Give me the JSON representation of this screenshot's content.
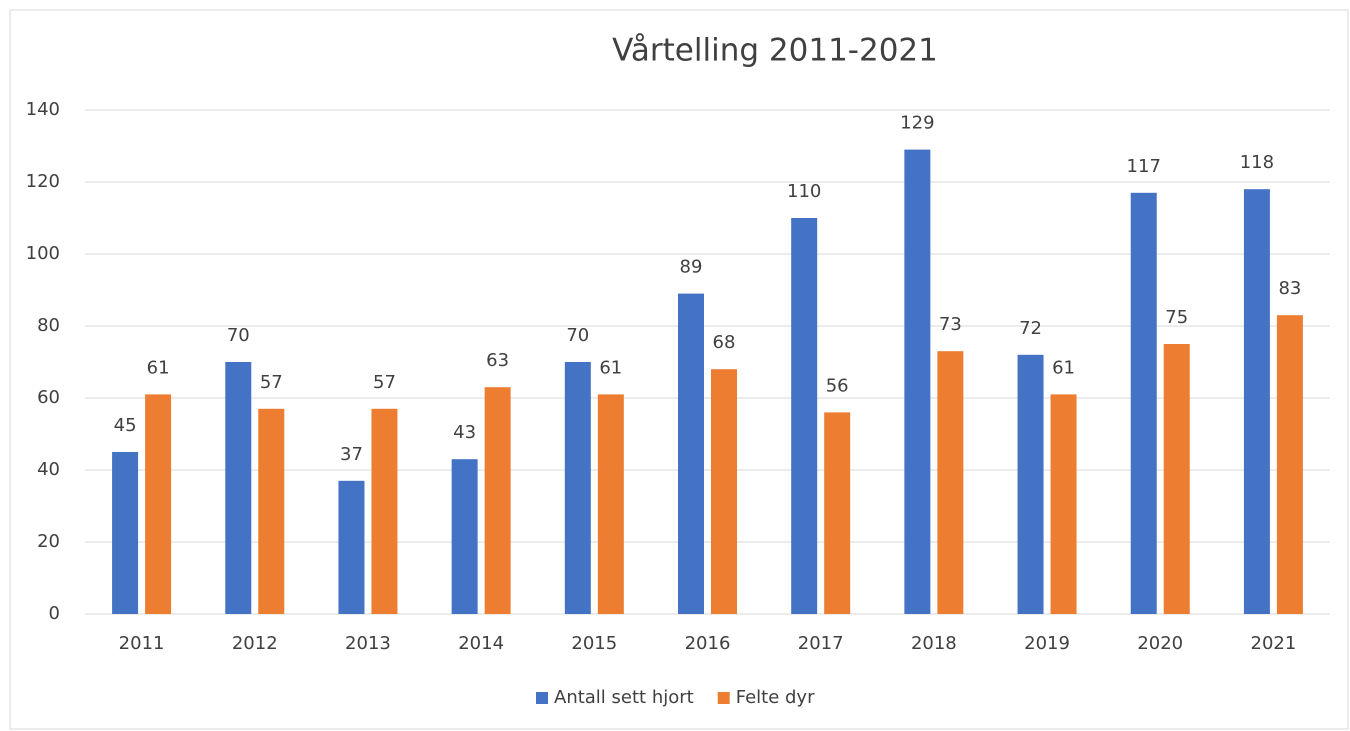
{
  "chart_data": {
    "type": "bar",
    "title": "Vårtelling 2011-2021",
    "categories": [
      "2011",
      "2012",
      "2013",
      "2014",
      "2015",
      "2016",
      "2017",
      "2018",
      "2019",
      "2020",
      "2021"
    ],
    "series": [
      {
        "name": "Antall sett hjort",
        "color": "#4472c4",
        "values": [
          45,
          70,
          37,
          43,
          70,
          89,
          110,
          129,
          72,
          117,
          118
        ]
      },
      {
        "name": "Felte dyr",
        "color": "#ed7d31",
        "values": [
          61,
          57,
          57,
          63,
          61,
          68,
          56,
          73,
          61,
          75,
          83
        ]
      }
    ],
    "ylim": [
      0,
      140
    ],
    "yticks": [
      0,
      20,
      40,
      60,
      80,
      100,
      120,
      140
    ],
    "grid": true,
    "legend": "bottom"
  }
}
